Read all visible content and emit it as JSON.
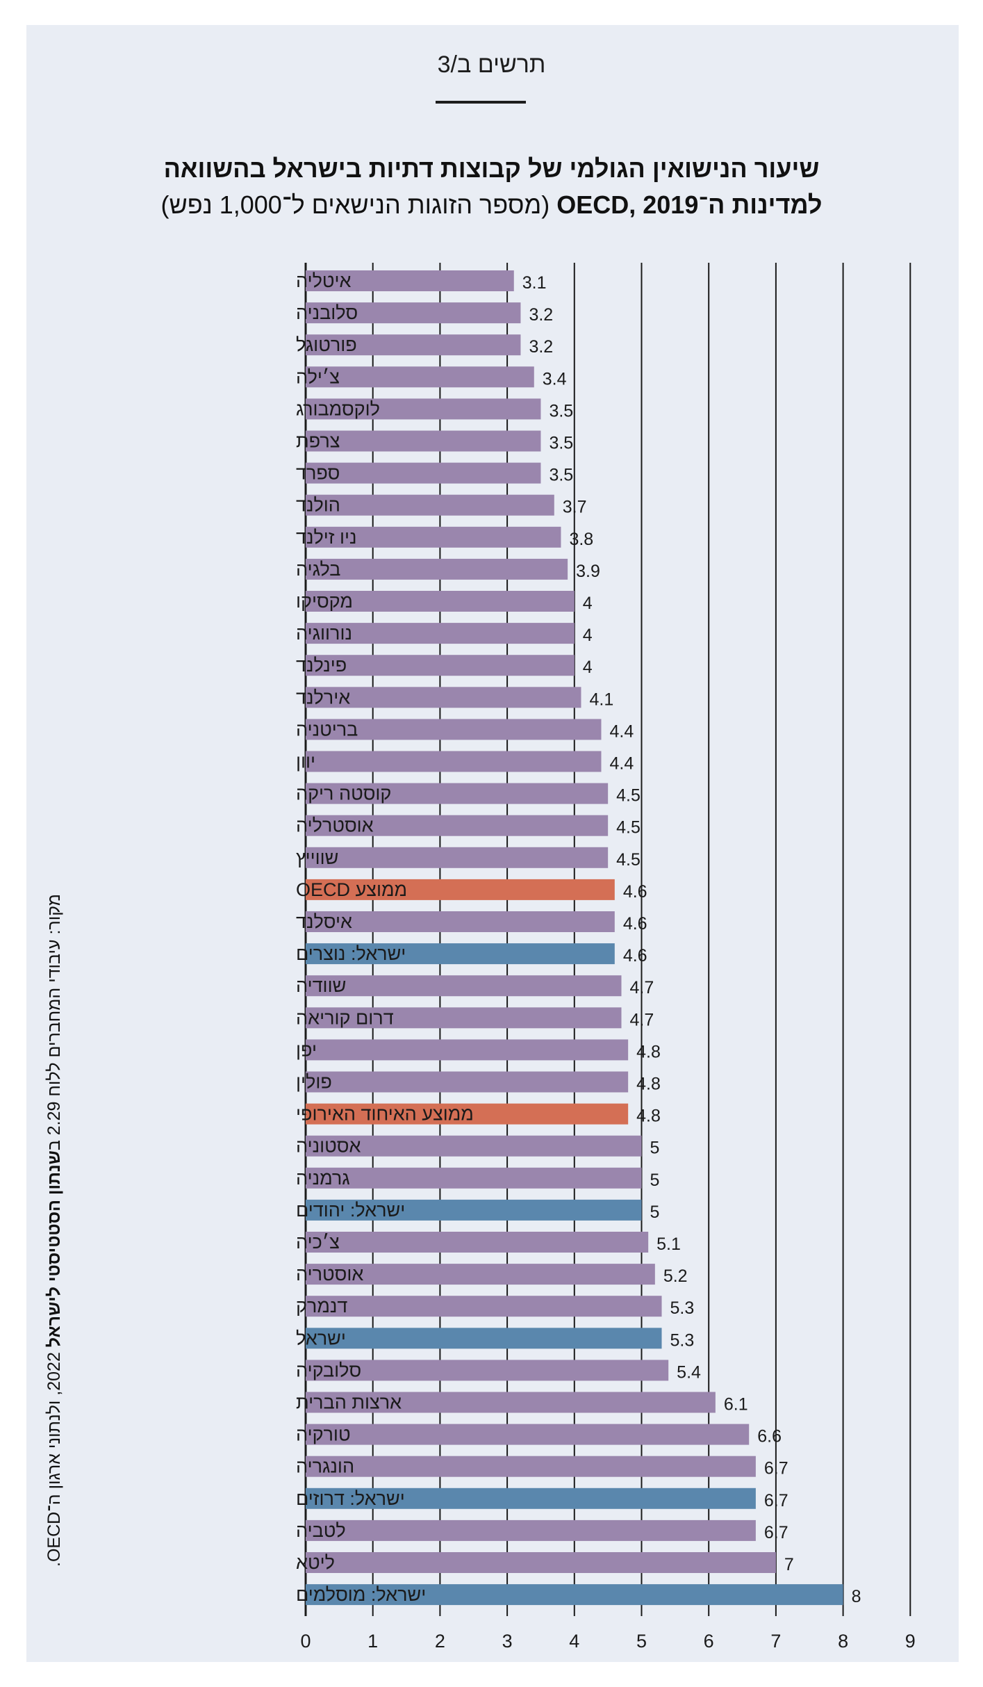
{
  "figure_number": "תרשים ב/3",
  "source": {
    "prefix": "מקור: עיבודי המחברים ללוח 2.29 ב",
    "bold": "שנתון הסטטיסטי לישראל",
    "suffix": " 2022, ולנתוני ארגון ה־OECD."
  },
  "colors": {
    "countries": "#9a86ad",
    "israel": "#5a87ad",
    "averages": "#d46f55",
    "background": "#e9edf4",
    "grid": "#1a1a1a"
  },
  "chart_data": {
    "type": "bar",
    "orientation": "horizontal",
    "title": "שיעור הנישואין הגולמי של קבוצות דתיות בישראל בהשוואה",
    "title_line2": "למדינות ה־OECD, 2019",
    "subtitle": "(מספר הזוגות הנישאים ל־1,000 נפש)",
    "xlim": [
      0,
      9
    ],
    "xticks": [
      "0",
      "1",
      "2",
      "3",
      "4",
      "5",
      "6",
      "7",
      "8",
      "9"
    ],
    "grid": "vertical",
    "bars": [
      {
        "label": "איטליה",
        "value": 3.1,
        "value_label": "3.1",
        "group": "countries"
      },
      {
        "label": "סלובניה",
        "value": 3.2,
        "value_label": "3.2",
        "group": "countries"
      },
      {
        "label": "פורטוגל",
        "value": 3.2,
        "value_label": "3.2",
        "group": "countries"
      },
      {
        "label": "צ׳ילה",
        "value": 3.4,
        "value_label": "3.4",
        "group": "countries"
      },
      {
        "label": "לוקסמבורג",
        "value": 3.5,
        "value_label": "3.5",
        "group": "countries"
      },
      {
        "label": "צרפת",
        "value": 3.5,
        "value_label": "3.5",
        "group": "countries"
      },
      {
        "label": "ספרד",
        "value": 3.5,
        "value_label": "3.5",
        "group": "countries"
      },
      {
        "label": "הולנד",
        "value": 3.7,
        "value_label": "3.7",
        "group": "countries"
      },
      {
        "label": "ניו זילנד",
        "value": 3.8,
        "value_label": "3.8",
        "group": "countries"
      },
      {
        "label": "בלגיה",
        "value": 3.9,
        "value_label": "3.9",
        "group": "countries"
      },
      {
        "label": "מקסיקו",
        "value": 4,
        "value_label": "4",
        "group": "countries"
      },
      {
        "label": "נורווגיה",
        "value": 4,
        "value_label": "4",
        "group": "countries"
      },
      {
        "label": "פינלנד",
        "value": 4,
        "value_label": "4",
        "group": "countries"
      },
      {
        "label": "אירלנד",
        "value": 4.1,
        "value_label": "4.1",
        "group": "countries"
      },
      {
        "label": "בריטניה",
        "value": 4.4,
        "value_label": "4.4",
        "group": "countries"
      },
      {
        "label": "יוון",
        "value": 4.4,
        "value_label": "4.4",
        "group": "countries"
      },
      {
        "label": "קוסטה ריקה",
        "value": 4.5,
        "value_label": "4.5",
        "group": "countries"
      },
      {
        "label": "אוסטרליה",
        "value": 4.5,
        "value_label": "4.5",
        "group": "countries"
      },
      {
        "label": "שווייץ",
        "value": 4.5,
        "value_label": "4.5",
        "group": "countries"
      },
      {
        "label": "ממוצע OECD",
        "value": 4.6,
        "value_label": "4.6",
        "group": "averages"
      },
      {
        "label": "איסלנד",
        "value": 4.6,
        "value_label": "4.6",
        "group": "countries"
      },
      {
        "label": "ישראל: נוצרים",
        "value": 4.6,
        "value_label": "4.6",
        "group": "israel"
      },
      {
        "label": "שוודיה",
        "value": 4.7,
        "value_label": "4.7",
        "group": "countries"
      },
      {
        "label": "דרום קוריאה",
        "value": 4.7,
        "value_label": "4.7",
        "group": "countries"
      },
      {
        "label": "יפן",
        "value": 4.8,
        "value_label": "4.8",
        "group": "countries"
      },
      {
        "label": "פולין",
        "value": 4.8,
        "value_label": "4.8",
        "group": "countries"
      },
      {
        "label": "ממוצע האיחוד האירופי",
        "value": 4.8,
        "value_label": "4.8",
        "group": "averages"
      },
      {
        "label": "אסטוניה",
        "value": 5,
        "value_label": "5",
        "group": "countries"
      },
      {
        "label": "גרמניה",
        "value": 5,
        "value_label": "5",
        "group": "countries"
      },
      {
        "label": "ישראל: יהודים",
        "value": 5,
        "value_label": "5",
        "group": "israel"
      },
      {
        "label": "צ׳כיה",
        "value": 5.1,
        "value_label": "5.1",
        "group": "countries"
      },
      {
        "label": "אוסטריה",
        "value": 5.2,
        "value_label": "5.2",
        "group": "countries"
      },
      {
        "label": "דנמרק",
        "value": 5.3,
        "value_label": "5.3",
        "group": "countries"
      },
      {
        "label": "ישראל",
        "value": 5.3,
        "value_label": "5.3",
        "group": "israel"
      },
      {
        "label": "סלובקיה",
        "value": 5.4,
        "value_label": "5.4",
        "group": "countries"
      },
      {
        "label": "ארצות הברית",
        "value": 6.1,
        "value_label": "6.1",
        "group": "countries"
      },
      {
        "label": "טורקיה",
        "value": 6.6,
        "value_label": "6.6",
        "group": "countries"
      },
      {
        "label": "הונגריה",
        "value": 6.7,
        "value_label": "6.7",
        "group": "countries"
      },
      {
        "label": "ישראל: דרוזים",
        "value": 6.7,
        "value_label": "6.7",
        "group": "israel"
      },
      {
        "label": "לטביה",
        "value": 6.7,
        "value_label": "6.7",
        "group": "countries"
      },
      {
        "label": "ליטא",
        "value": 7,
        "value_label": "7",
        "group": "countries"
      },
      {
        "label": "ישראל: מוסלמים",
        "value": 8,
        "value_label": "8",
        "group": "israel"
      }
    ]
  }
}
